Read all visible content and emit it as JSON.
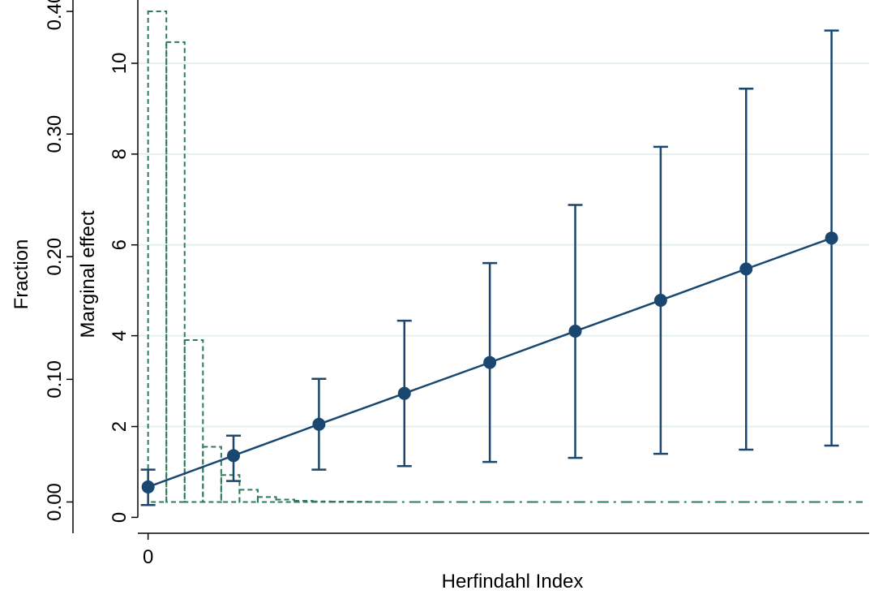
{
  "chart_data": {
    "type": "line",
    "title": "",
    "xlabel": "Herfindahl Index",
    "ylabel": "Marginal effect",
    "y2label": "Fraction",
    "xlim": [
      -0.06,
      4.22
    ],
    "ylim": [
      -0.35,
      11.25
    ],
    "y2lim": [
      -0.0255,
      0.404
    ],
    "x_ticks": [
      0
    ],
    "x_tick_labels": [
      "0"
    ],
    "y_ticks": [
      0,
      2,
      4,
      6,
      8,
      10
    ],
    "y_tick_labels": [
      "0",
      "2",
      "4",
      "6",
      "8",
      "10"
    ],
    "y2_ticks": [
      0,
      0.1,
      0.2,
      0.3,
      0.4
    ],
    "y2_tick_labels": [
      "0.00",
      "0.10",
      "0.20",
      "0.30",
      "0.40"
    ],
    "grid": true,
    "legend": "none",
    "series": [
      {
        "type": "line-errorbar",
        "x": [
          0,
          0.5,
          1.0,
          1.5,
          2.0,
          2.5,
          3.0,
          3.5,
          4.0
        ],
        "values": [
          0.67,
          1.36,
          2.05,
          2.73,
          3.41,
          4.1,
          4.78,
          5.47,
          6.15
        ],
        "lower": [
          0.27,
          0.8,
          1.05,
          1.13,
          1.22,
          1.31,
          1.4,
          1.49,
          1.58
        ],
        "upper": [
          1.05,
          1.8,
          3.05,
          4.33,
          5.6,
          6.88,
          8.16,
          9.44,
          10.72
        ],
        "color": "#1a476f"
      },
      {
        "type": "histogram",
        "axis": "y2",
        "bin_width": 0.107,
        "bin_start": 0,
        "values": [
          0.4,
          0.375,
          0.132,
          0.045,
          0.022,
          0.01,
          0.004,
          0.002,
          0.001,
          0.0005,
          0.0003,
          0.0002,
          0.0001
        ],
        "color": "#2e7a5c"
      }
    ]
  }
}
